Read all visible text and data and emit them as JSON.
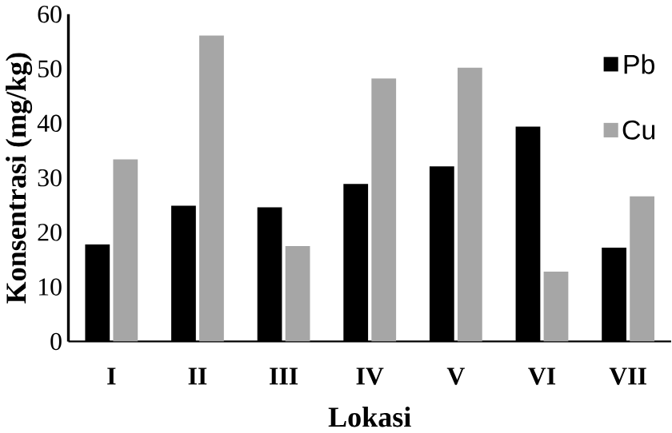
{
  "chart_data": {
    "type": "bar",
    "xlabel": "Lokasi",
    "ylabel": "Konsentrasi (mg/kg)",
    "categories": [
      "I",
      "II",
      "III",
      "IV",
      "V",
      "VI",
      "VII"
    ],
    "series": [
      {
        "name": "Pb",
        "color": "#000000",
        "values": [
          17.8,
          24.9,
          24.6,
          28.9,
          32.1,
          39.4,
          17.2
        ]
      },
      {
        "name": "Cu",
        "color": "#a6a6a6",
        "values": [
          33.4,
          56.1,
          17.5,
          48.2,
          50.2,
          12.8,
          26.6
        ]
      }
    ],
    "ylim": [
      0,
      60
    ],
    "yticks": [
      0,
      10,
      20,
      30,
      40,
      50,
      60
    ],
    "grid": false,
    "legend": "top right"
  }
}
